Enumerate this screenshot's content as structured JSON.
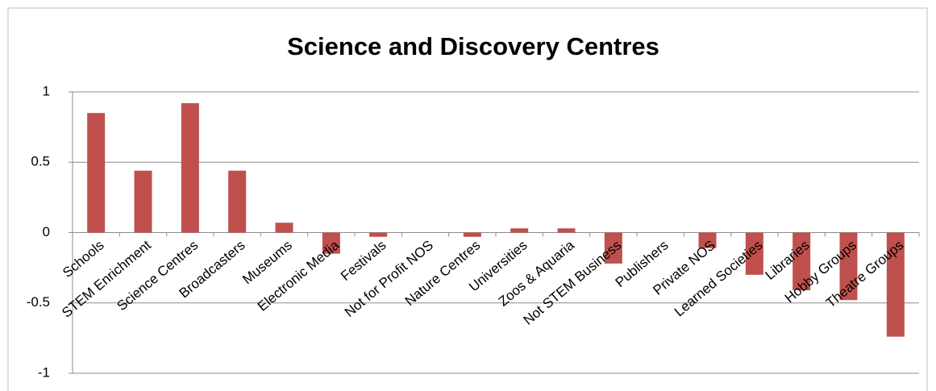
{
  "chart_data": {
    "type": "bar",
    "title": "Science and Discovery Centres",
    "categories": [
      "Schools",
      "STEM Enrichment",
      "Science Centres",
      "Broadcasters",
      "Museums",
      "Electronic Media",
      "Festivals",
      "Not for Profit NOS",
      "Nature Centres",
      "Universities",
      "Zoos & Aquaria",
      "Not STEM Business",
      "Publishers",
      "Private NOS",
      "Learned Societies",
      "Libraries",
      "Hobby Groups",
      "Theatre Groups"
    ],
    "values": [
      0.85,
      0.44,
      0.92,
      0.44,
      0.07,
      -0.15,
      -0.03,
      0,
      -0.03,
      0.03,
      0.03,
      -0.22,
      0,
      -0.11,
      -0.3,
      -0.41,
      -0.48,
      -0.74
    ],
    "color": "#c0504d",
    "ylim": [
      -1,
      1
    ],
    "yticks": [
      1,
      0.5,
      0,
      -0.5,
      -1
    ],
    "grid": true
  }
}
